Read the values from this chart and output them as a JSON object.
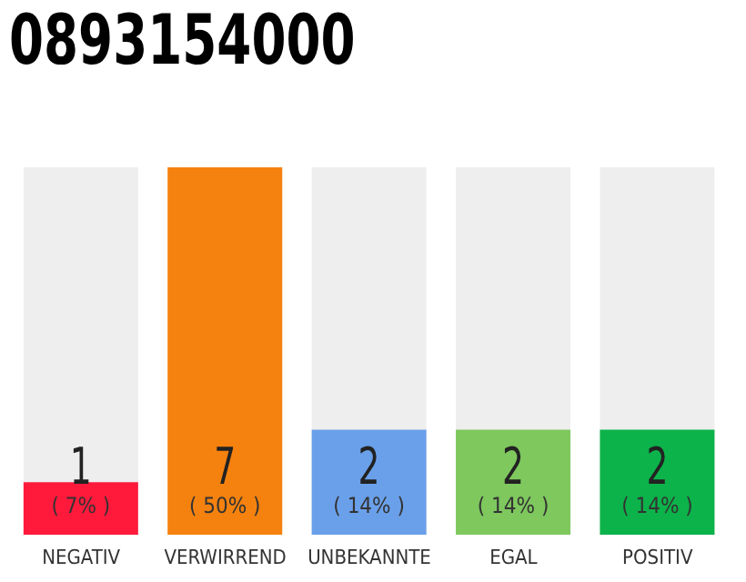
{
  "chart_data": {
    "type": "bar",
    "title": "0893154000",
    "categories": [
      "NEGATIV",
      "VERWIRREND",
      "UNBEKANNTE",
      "EGAL",
      "POSITIV"
    ],
    "values": [
      1,
      7,
      2,
      2,
      2
    ],
    "colors": [
      "#ff1a3c",
      "#f5820e",
      "#6aa0ea",
      "#7ec85e",
      "#0cb34a"
    ],
    "data_labels": true,
    "annotations": [
      "( 7% )",
      "( 50% )",
      "( 14% )",
      "( 14% )",
      "( 14% )"
    ],
    "grid": false,
    "legend": false
  }
}
